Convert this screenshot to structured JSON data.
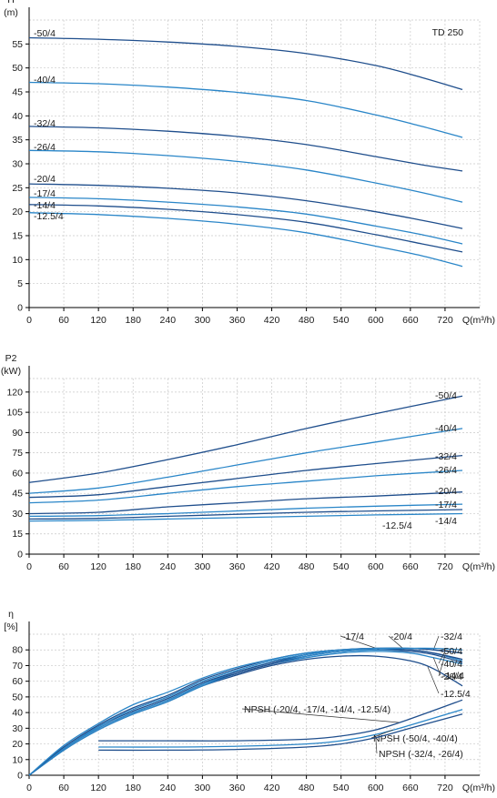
{
  "colors": {
    "curve_a": "#1f4e8c",
    "curve_b": "#2a86c8"
  },
  "chart_data": [
    {
      "type": "line",
      "title": "TD 250",
      "ylabel": "H",
      "yunit": "(m)",
      "xlabel": "Q(m³/h)",
      "xlim": [
        0,
        780
      ],
      "ylim": [
        0,
        60
      ],
      "xticks": [
        0,
        60,
        120,
        180,
        240,
        300,
        360,
        420,
        480,
        540,
        600,
        660,
        720
      ],
      "yticks": [
        0,
        5,
        10,
        15,
        20,
        25,
        30,
        35,
        40,
        45,
        50,
        55
      ],
      "grid": true,
      "series": [
        {
          "name": "-50/4",
          "x": [
            0,
            120,
            240,
            360,
            480,
            600,
            680,
            750
          ],
          "y": [
            56.3,
            56.0,
            55.4,
            54.5,
            53.0,
            50.5,
            48.0,
            45.5
          ]
        },
        {
          "name": "-40/4",
          "x": [
            0,
            120,
            240,
            360,
            480,
            600,
            680,
            750
          ],
          "y": [
            47.0,
            46.7,
            46.0,
            44.9,
            43.2,
            40.2,
            37.8,
            35.5
          ]
        },
        {
          "name": "-32/4",
          "x": [
            0,
            120,
            240,
            360,
            480,
            600,
            680,
            750
          ],
          "y": [
            37.8,
            37.5,
            36.8,
            35.7,
            34.0,
            31.5,
            29.8,
            28.5
          ]
        },
        {
          "name": "-26/4",
          "x": [
            0,
            120,
            240,
            360,
            480,
            600,
            680,
            750
          ],
          "y": [
            32.8,
            32.5,
            31.7,
            30.5,
            28.7,
            26.0,
            24.0,
            22.0
          ]
        },
        {
          "name": "-20/4",
          "x": [
            0,
            120,
            240,
            360,
            480,
            600,
            680,
            750
          ],
          "y": [
            25.8,
            25.5,
            24.9,
            23.9,
            22.3,
            20.0,
            18.2,
            16.5
          ]
        },
        {
          "name": "-17/4",
          "x": [
            0,
            120,
            240,
            360,
            480,
            600,
            680,
            750
          ],
          "y": [
            23.0,
            22.7,
            22.0,
            21.0,
            19.5,
            17.0,
            15.2,
            13.3
          ]
        },
        {
          "name": "-14/4",
          "x": [
            0,
            120,
            240,
            360,
            480,
            600,
            680,
            750
          ],
          "y": [
            21.5,
            21.2,
            20.5,
            19.4,
            17.8,
            15.2,
            13.3,
            11.6
          ]
        },
        {
          "name": "-12.5/4",
          "x": [
            0,
            120,
            240,
            360,
            480,
            600,
            680,
            750
          ],
          "y": [
            19.8,
            19.4,
            18.6,
            17.4,
            15.6,
            12.8,
            10.8,
            8.6
          ]
        }
      ]
    },
    {
      "type": "line",
      "ylabel": "P2",
      "yunit": "(kW)",
      "xlabel": "Q(m³/h)",
      "xlim": [
        0,
        780
      ],
      "ylim": [
        0,
        130
      ],
      "xticks": [
        0,
        60,
        120,
        180,
        240,
        300,
        360,
        420,
        480,
        540,
        600,
        660,
        720
      ],
      "yticks": [
        0,
        15,
        30,
        45,
        60,
        75,
        90,
        105,
        120
      ],
      "grid": true,
      "series": [
        {
          "name": "-50/4",
          "x": [
            0,
            120,
            240,
            360,
            480,
            600,
            750
          ],
          "y": [
            53,
            60,
            70,
            81,
            93,
            104,
            117
          ]
        },
        {
          "name": "-40/4",
          "x": [
            0,
            120,
            240,
            360,
            480,
            600,
            750
          ],
          "y": [
            45,
            49,
            57,
            66,
            75,
            83,
            93
          ]
        },
        {
          "name": "-32/4",
          "x": [
            0,
            120,
            240,
            360,
            480,
            600,
            750
          ],
          "y": [
            42,
            44,
            50,
            56,
            62,
            67,
            73
          ]
        },
        {
          "name": "-26/4",
          "x": [
            0,
            120,
            240,
            360,
            480,
            600,
            750
          ],
          "y": [
            38,
            40,
            45,
            50,
            54,
            58,
            62
          ]
        },
        {
          "name": "-20/4",
          "x": [
            0,
            120,
            240,
            360,
            480,
            600,
            750
          ],
          "y": [
            30,
            31,
            35,
            38,
            41,
            43,
            46
          ]
        },
        {
          "name": "-17/4",
          "x": [
            0,
            120,
            240,
            360,
            480,
            600,
            750
          ],
          "y": [
            28,
            28.5,
            30,
            32,
            34,
            35.5,
            37
          ]
        },
        {
          "name": "-14/4",
          "x": [
            0,
            120,
            240,
            360,
            480,
            600,
            750
          ],
          "y": [
            26,
            26.5,
            28,
            29.5,
            31,
            32,
            33
          ]
        },
        {
          "name": "-12.5/4",
          "x": [
            0,
            120,
            240,
            360,
            480,
            600,
            750
          ],
          "y": [
            24.5,
            25,
            26,
            27,
            28,
            29,
            30
          ]
        }
      ]
    },
    {
      "type": "line",
      "ylabel": "η",
      "yunit": "[%]",
      "xlabel": "Q(m³/h)",
      "xlim": [
        0,
        780
      ],
      "ylim": [
        0,
        90
      ],
      "xticks": [
        0,
        60,
        120,
        180,
        240,
        300,
        360,
        420,
        480,
        540,
        600,
        660,
        720
      ],
      "yticks": [
        0,
        10,
        20,
        30,
        40,
        50,
        60,
        70,
        80
      ],
      "grid": true,
      "series": [
        {
          "name": "-12.5/4",
          "x": [
            0,
            60,
            120,
            180,
            240,
            300,
            360,
            420,
            480,
            540,
            600,
            660,
            700,
            750
          ],
          "y": [
            0,
            16,
            29,
            39,
            47,
            57,
            64,
            70,
            74,
            76,
            76,
            73,
            68,
            57
          ]
        },
        {
          "name": "-14/4",
          "x": [
            0,
            60,
            120,
            180,
            240,
            300,
            360,
            420,
            480,
            540,
            600,
            660,
            700,
            750
          ],
          "y": [
            0,
            16,
            29,
            39,
            47,
            57,
            65,
            71,
            75,
            78,
            79,
            78,
            75,
            71
          ]
        },
        {
          "name": "-17/4",
          "x": [
            0,
            60,
            120,
            180,
            240,
            300,
            360,
            420,
            480,
            540,
            600,
            660,
            700,
            750
          ],
          "y": [
            0,
            17,
            30,
            40,
            48,
            58,
            65,
            71,
            76,
            79,
            80,
            79,
            77,
            72
          ]
        },
        {
          "name": "-20/4",
          "x": [
            0,
            60,
            120,
            180,
            240,
            300,
            360,
            420,
            480,
            540,
            600,
            660,
            700,
            750
          ],
          "y": [
            0,
            17,
            30,
            40,
            48,
            58,
            66,
            72,
            76,
            79,
            80,
            80,
            78,
            73
          ]
        },
        {
          "name": "-26/4",
          "x": [
            0,
            60,
            120,
            180,
            240,
            300,
            360,
            420,
            480,
            540,
            600,
            660,
            700,
            750
          ],
          "y": [
            0,
            17,
            31,
            41,
            49,
            59,
            66,
            72,
            77,
            80,
            81,
            80,
            78,
            74
          ]
        },
        {
          "name": "-32/4",
          "x": [
            0,
            60,
            120,
            180,
            240,
            300,
            360,
            420,
            480,
            540,
            600,
            660,
            700,
            750
          ],
          "y": [
            0,
            17,
            31,
            42,
            50,
            60,
            67,
            73,
            77,
            80,
            81,
            81,
            80,
            78
          ]
        },
        {
          "name": "-40/4",
          "x": [
            0,
            60,
            120,
            180,
            240,
            300,
            360,
            420,
            480,
            540,
            600,
            660,
            700,
            750
          ],
          "y": [
            0,
            18,
            32,
            43,
            51,
            61,
            68,
            74,
            78,
            80,
            81,
            81,
            80,
            78
          ]
        },
        {
          "name": "-50/4",
          "x": [
            0,
            60,
            120,
            180,
            240,
            300,
            360,
            420,
            480,
            540,
            600,
            660,
            700,
            750
          ],
          "y": [
            0,
            19,
            33,
            45,
            53,
            62,
            69,
            74,
            78,
            80,
            81,
            81,
            81,
            80
          ]
        },
        {
          "name": "NPSH (-20/4, -17/4, -14/4, -12.5/4)",
          "x": [
            120,
            240,
            360,
            480,
            540,
            600,
            660,
            750
          ],
          "y": [
            22,
            22,
            22,
            23,
            25,
            29,
            36,
            48
          ]
        },
        {
          "name": "NPSH (-50/4, -40/4)",
          "x": [
            120,
            240,
            360,
            480,
            540,
            600,
            660,
            750
          ],
          "y": [
            18,
            18,
            18.5,
            20,
            22,
            26,
            32,
            42
          ]
        },
        {
          "name": "NPSH (-32/4, -26/4)",
          "x": [
            120,
            240,
            360,
            480,
            540,
            600,
            660,
            750
          ],
          "y": [
            16,
            16,
            16.5,
            18,
            20,
            24,
            30,
            39
          ]
        }
      ]
    }
  ]
}
